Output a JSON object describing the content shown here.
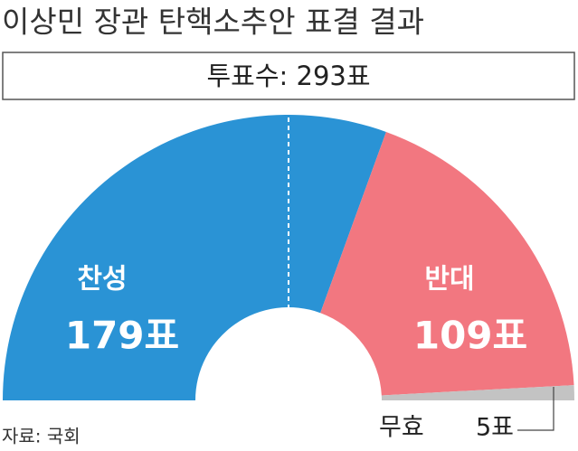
{
  "chart_data": {
    "type": "pie",
    "title": "이상민 장관 탄핵소추안 표결 결과",
    "subtitle": "투표수: 293표",
    "categories": [
      "찬성",
      "반대",
      "무효"
    ],
    "values": [
      179,
      109,
      5
    ],
    "value_labels": [
      "179표",
      "109표",
      "5표"
    ],
    "colors": [
      "#2a93d5",
      "#f27780",
      "#c3c3c3"
    ],
    "source": "자료: 국회"
  }
}
